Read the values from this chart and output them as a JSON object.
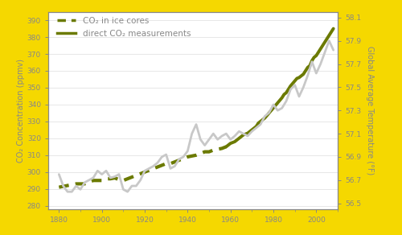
{
  "background_color": "#F5D800",
  "plot_bg_color": "#FFFFFF",
  "ylabel_left": "CO₂ Concentration (ppmv)",
  "ylabel_right": "Global Average Temperature (°F)",
  "ylim_left": [
    278,
    395
  ],
  "ylim_right": [
    56.45,
    58.15
  ],
  "yticks_left": [
    280,
    290,
    300,
    310,
    320,
    330,
    340,
    350,
    360,
    370,
    380,
    390
  ],
  "yticks_right": [
    56.5,
    56.7,
    56.9,
    57.1,
    57.3,
    57.5,
    57.7,
    57.9,
    58.1
  ],
  "xticks": [
    1880,
    1900,
    1920,
    1940,
    1960,
    1980,
    2000
  ],
  "xlim": [
    1875,
    2010
  ],
  "line_color_dashed": "#6B7A00",
  "line_color_solid": "#6B7A00",
  "temp_color": "#C8C8C8",
  "legend_labels": [
    "CO₂ in ice cores",
    "direct CO₂ measurements"
  ],
  "tick_color": "#888888",
  "label_color": "#888888",
  "co2_ice_x": [
    1880,
    1882,
    1884,
    1886,
    1888,
    1890,
    1892,
    1894,
    1896,
    1898,
    1900,
    1902,
    1904,
    1906,
    1908,
    1910,
    1912,
    1914,
    1916,
    1918,
    1920,
    1922,
    1924,
    1926,
    1928,
    1930,
    1932,
    1934,
    1936,
    1938,
    1940,
    1942,
    1944,
    1946,
    1948,
    1950,
    1952,
    1954,
    1956,
    1958
  ],
  "co2_ice_y": [
    291,
    291.5,
    292,
    292.5,
    293,
    293,
    293,
    294,
    295,
    295,
    295,
    296,
    296,
    296.5,
    295.5,
    295,
    296,
    297,
    298,
    299,
    300,
    301,
    302,
    303,
    304,
    305,
    305,
    306,
    307,
    308,
    309,
    309.5,
    310,
    311,
    312,
    312,
    313,
    313.5,
    314,
    315
  ],
  "co2_direct_x": [
    1958,
    1959,
    1960,
    1961,
    1962,
    1963,
    1964,
    1965,
    1966,
    1967,
    1968,
    1969,
    1970,
    1971,
    1972,
    1973,
    1974,
    1975,
    1976,
    1977,
    1978,
    1979,
    1980,
    1981,
    1982,
    1983,
    1984,
    1985,
    1986,
    1987,
    1988,
    1989,
    1990,
    1991,
    1992,
    1993,
    1994,
    1995,
    1996,
    1997,
    1998,
    1999,
    2000,
    2001,
    2002,
    2003,
    2004,
    2005,
    2006,
    2007,
    2008
  ],
  "co2_direct_y": [
    315,
    316,
    317,
    317.5,
    318,
    319,
    320,
    321,
    322,
    322.5,
    323,
    324,
    325,
    326,
    327,
    329,
    330,
    331,
    332,
    333.5,
    335,
    336.5,
    338,
    339.5,
    341,
    342.5,
    344,
    346,
    347,
    349,
    351,
    352.5,
    354,
    355.5,
    356,
    357,
    358,
    360,
    362,
    363,
    366,
    368,
    369,
    371,
    373,
    375,
    377,
    379,
    381,
    383,
    385
  ],
  "temp_x": [
    1880,
    1882,
    1884,
    1886,
    1888,
    1890,
    1892,
    1894,
    1896,
    1898,
    1900,
    1902,
    1904,
    1906,
    1908,
    1910,
    1912,
    1914,
    1916,
    1918,
    1920,
    1922,
    1924,
    1926,
    1928,
    1930,
    1932,
    1934,
    1936,
    1938,
    1940,
    1942,
    1944,
    1946,
    1948,
    1950,
    1952,
    1954,
    1956,
    1958,
    1960,
    1962,
    1964,
    1966,
    1968,
    1970,
    1972,
    1974,
    1976,
    1978,
    1980,
    1982,
    1984,
    1986,
    1988,
    1990,
    1992,
    1994,
    1996,
    1998,
    2000,
    2002,
    2004,
    2006,
    2008
  ],
  "temp_y": [
    56.75,
    56.65,
    56.6,
    56.6,
    56.65,
    56.62,
    56.68,
    56.7,
    56.72,
    56.78,
    56.75,
    56.78,
    56.72,
    56.73,
    56.75,
    56.62,
    56.6,
    56.65,
    56.65,
    56.7,
    56.78,
    56.8,
    56.82,
    56.85,
    56.9,
    56.92,
    56.8,
    56.82,
    56.88,
    56.9,
    56.95,
    57.1,
    57.18,
    57.05,
    57.0,
    57.05,
    57.1,
    57.05,
    57.08,
    57.1,
    57.05,
    57.08,
    57.12,
    57.1,
    57.08,
    57.12,
    57.15,
    57.18,
    57.25,
    57.28,
    57.35,
    57.3,
    57.32,
    57.38,
    57.48,
    57.52,
    57.42,
    57.5,
    57.6,
    57.72,
    57.62,
    57.7,
    57.8,
    57.9,
    57.82
  ]
}
